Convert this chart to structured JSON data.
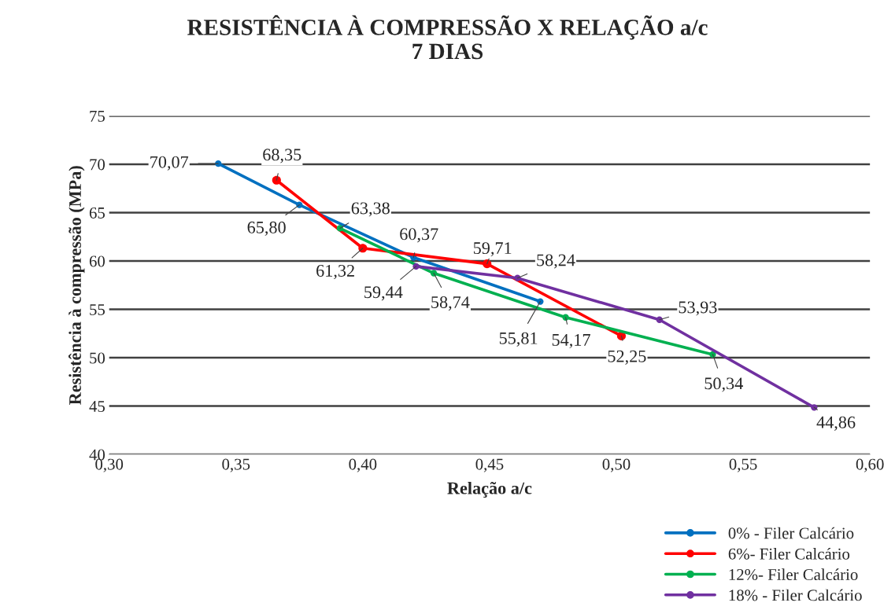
{
  "chart_data": {
    "type": "line",
    "title": "RESISTÊNCIA À COMPRESSÃO X RELAÇÃO a/c\n7 DIAS",
    "xlabel": "Relação a/c",
    "ylabel": "Resistência à compressão (MPa)",
    "xlim": [
      0.3,
      0.6
    ],
    "xticks": [
      {
        "value": 0.3,
        "label": "0,30"
      },
      {
        "value": 0.35,
        "label": "0,35"
      },
      {
        "value": 0.4,
        "label": "0,40"
      },
      {
        "value": 0.45,
        "label": "0,45"
      },
      {
        "value": 0.5,
        "label": "0,50"
      },
      {
        "value": 0.55,
        "label": "0,55"
      },
      {
        "value": 0.6,
        "label": "0,60"
      }
    ],
    "ylim": [
      40,
      75
    ],
    "yticks": [
      40,
      45,
      50,
      55,
      60,
      65,
      70,
      75
    ],
    "grid": "y",
    "legend": "bottom right",
    "marker": "circle",
    "series": [
      {
        "name": "0% - Filer Calcário",
        "color": "#0070c0",
        "x": [
          0.343,
          0.375,
          0.42,
          0.47
        ],
        "values": [
          70.07,
          65.8,
          60.37,
          55.81
        ],
        "value_labels": [
          "70,07",
          "65,80",
          "60,37",
          "55,81"
        ]
      },
      {
        "name": "6%- Filer Calcário",
        "color": "#ff0000",
        "x": [
          0.366,
          0.4,
          0.449,
          0.502
        ],
        "values": [
          68.35,
          61.32,
          59.71,
          52.25
        ],
        "value_labels": [
          "68,35",
          "61,32",
          "59,71",
          "52,25"
        ]
      },
      {
        "name": "12%- Filer Calcário",
        "color": "#00b050",
        "x": [
          0.391,
          0.428,
          0.48,
          0.538
        ],
        "values": [
          63.38,
          58.74,
          54.17,
          50.34
        ],
        "value_labels": [
          "63,38",
          "58,74",
          "54,17",
          "50,34"
        ]
      },
      {
        "name": "18% - Filer Calcário",
        "color": "#7030a0",
        "x": [
          0.421,
          0.461,
          0.517,
          0.578
        ],
        "values": [
          59.44,
          58.24,
          53.93,
          44.86
        ],
        "value_labels": [
          "59,44",
          "58,24",
          "53,93",
          "44,86"
        ]
      }
    ]
  }
}
